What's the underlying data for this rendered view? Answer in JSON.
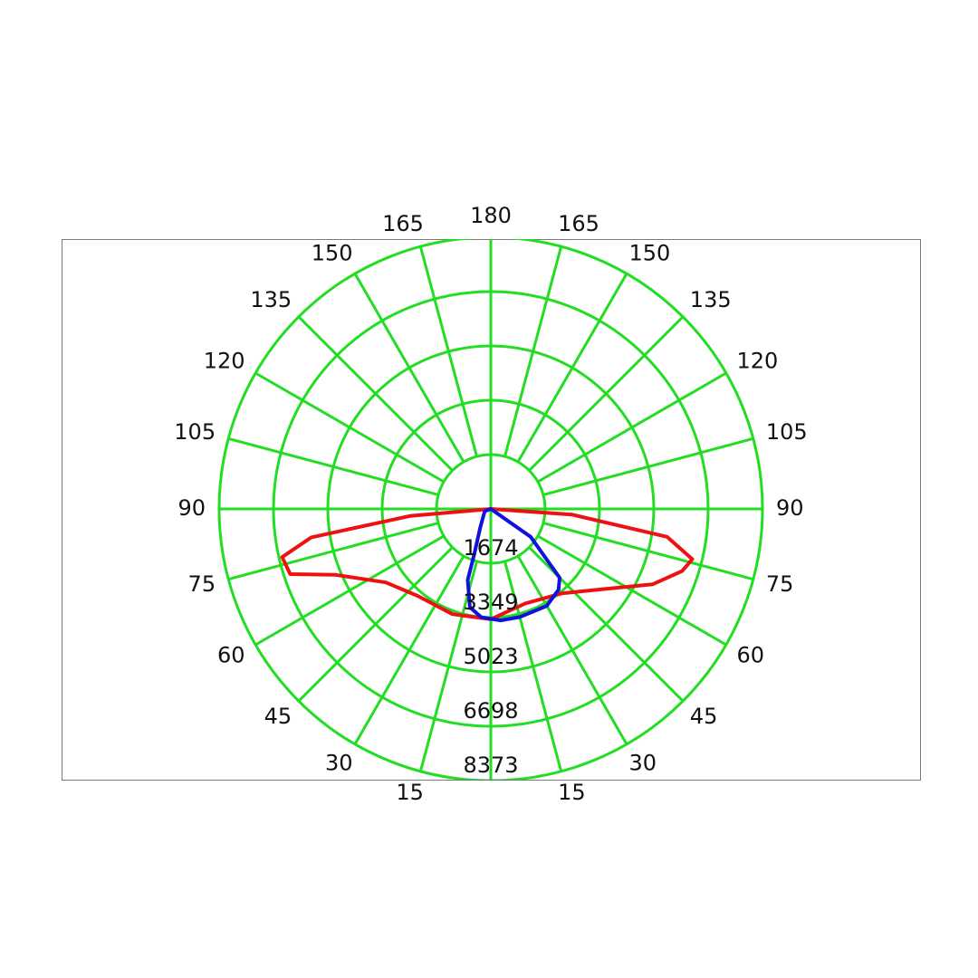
{
  "chart_data": {
    "type": "polar",
    "title": "",
    "angle_ticks_left": [
      "180",
      "165",
      "150",
      "135",
      "120",
      "105",
      "90",
      "75",
      "60",
      "45",
      "30",
      "15"
    ],
    "angle_ticks_right": [
      "165",
      "150",
      "135",
      "120",
      "105",
      "90",
      "75",
      "60",
      "45",
      "30",
      "15"
    ],
    "radial_ticks": [
      1674,
      3349,
      5023,
      6698,
      8373
    ],
    "r_max": 8373,
    "grid": true,
    "grid_color": "#22dd22",
    "angle_unit": "deg",
    "angle_convention": "0 = straight down, 180 = straight up, measured toward left or right",
    "series": [
      {
        "color": "#ee1111",
        "points": [
          {
            "side": "left",
            "angle": 90,
            "r": 0
          },
          {
            "side": "left",
            "angle": 85,
            "r": 2500
          },
          {
            "side": "left",
            "angle": 81,
            "r": 5600
          },
          {
            "side": "left",
            "angle": 77,
            "r": 6600
          },
          {
            "side": "left",
            "angle": 72,
            "r": 6500
          },
          {
            "side": "left",
            "angle": 67,
            "r": 5200
          },
          {
            "side": "left",
            "angle": 55,
            "r": 3950
          },
          {
            "side": "left",
            "angle": 40,
            "r": 3500
          },
          {
            "side": "left",
            "angle": 20,
            "r": 3450
          },
          {
            "side": "left",
            "angle": 0,
            "r": 3400
          },
          {
            "side": "right",
            "angle": 20,
            "r": 3100
          },
          {
            "side": "right",
            "angle": 40,
            "r": 3400
          },
          {
            "side": "right",
            "angle": 55,
            "r": 4300
          },
          {
            "side": "right",
            "angle": 65,
            "r": 5500
          },
          {
            "side": "right",
            "angle": 72,
            "r": 6200
          },
          {
            "side": "right",
            "angle": 76,
            "r": 6400
          },
          {
            "side": "right",
            "angle": 81,
            "r": 5500
          },
          {
            "side": "right",
            "angle": 86,
            "r": 2500
          },
          {
            "side": "right",
            "angle": 90,
            "r": 0
          }
        ]
      },
      {
        "color": "#1111dd",
        "points": [
          {
            "side": "right",
            "angle": 90,
            "r": 0
          },
          {
            "side": "right",
            "angle": 55,
            "r": 1500
          },
          {
            "side": "right",
            "angle": 45,
            "r": 3000
          },
          {
            "side": "right",
            "angle": 40,
            "r": 3250
          },
          {
            "side": "right",
            "angle": 30,
            "r": 3450
          },
          {
            "side": "right",
            "angle": 15,
            "r": 3450
          },
          {
            "side": "right",
            "angle": 5,
            "r": 3450
          },
          {
            "side": "left",
            "angle": 5,
            "r": 3350
          },
          {
            "side": "left",
            "angle": 12,
            "r": 3100
          },
          {
            "side": "left",
            "angle": 18,
            "r": 2300
          },
          {
            "side": "left",
            "angle": 20,
            "r": 1500
          },
          {
            "side": "left",
            "angle": 30,
            "r": 650
          },
          {
            "side": "left",
            "angle": 70,
            "r": 200
          },
          {
            "side": "left",
            "angle": 90,
            "r": 0
          }
        ]
      }
    ]
  }
}
